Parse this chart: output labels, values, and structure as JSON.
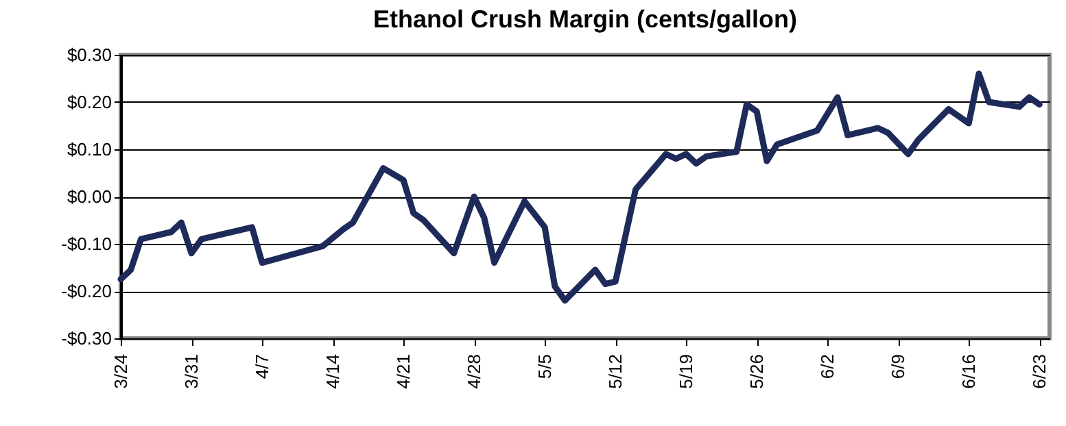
{
  "chart_data": {
    "type": "line",
    "title": "Ethanol Crush Margin (cents/gallon)",
    "x": [
      "--03-24",
      "--03-25",
      "--03-26",
      "--03-29",
      "--03-30",
      "--03-31",
      "--04-01",
      "--04-06",
      "--04-07",
      "--04-13",
      "--04-15",
      "--04-16",
      "--04-19",
      "--04-21",
      "--04-22",
      "--04-23",
      "--04-26",
      "--04-28",
      "--04-29",
      "--04-30",
      "--05-03",
      "--05-05",
      "--05-06",
      "--05-07",
      "--05-10",
      "--05-11",
      "--05-12",
      "--05-14",
      "--05-17",
      "--05-18",
      "--05-19",
      "--05-20",
      "--05-21",
      "--05-24",
      "--05-25",
      "--05-26",
      "--05-27",
      "--05-28",
      "--06-01",
      "--06-03",
      "--06-04",
      "--06-07",
      "--06-08",
      "--06-10",
      "--06-11",
      "--06-14",
      "--06-16",
      "--06-17",
      "--06-18",
      "--06-21",
      "--06-22",
      "--06-23"
    ],
    "series": [
      {
        "color": "#1e2a5a",
        "values": [
          -0.175,
          -0.155,
          -0.09,
          -0.075,
          -0.055,
          -0.12,
          -0.09,
          -0.065,
          -0.14,
          -0.105,
          -0.07,
          -0.055,
          0.06,
          0.035,
          -0.035,
          -0.05,
          -0.12,
          0.0,
          -0.045,
          -0.14,
          -0.01,
          -0.065,
          -0.19,
          -0.22,
          -0.155,
          -0.185,
          -0.18,
          0.015,
          0.09,
          0.08,
          0.09,
          0.07,
          0.085,
          0.095,
          0.195,
          0.18,
          0.075,
          0.11,
          0.14,
          0.21,
          0.13,
          0.145,
          0.135,
          0.09,
          0.12,
          0.185,
          0.155,
          0.26,
          0.2,
          0.19,
          0.21,
          0.195
        ]
      }
    ],
    "xlim": [
      "--03-24",
      "--06-24"
    ],
    "xticks": [
      {
        "value": "--03-24",
        "label": "3/24"
      },
      {
        "value": "--03-31",
        "label": "3/31"
      },
      {
        "value": "--04-07",
        "label": "4/7"
      },
      {
        "value": "--04-14",
        "label": "4/14"
      },
      {
        "value": "--04-21",
        "label": "4/21"
      },
      {
        "value": "--04-28",
        "label": "4/28"
      },
      {
        "value": "--05-05",
        "label": "5/5"
      },
      {
        "value": "--05-12",
        "label": "5/12"
      },
      {
        "value": "--05-19",
        "label": "5/19"
      },
      {
        "value": "--05-26",
        "label": "5/26"
      },
      {
        "value": "--06-02",
        "label": "6/2"
      },
      {
        "value": "--06-09",
        "label": "6/9"
      },
      {
        "value": "--06-16",
        "label": "6/16"
      },
      {
        "value": "--06-23",
        "label": "6/23"
      }
    ],
    "ylim": [
      -0.3,
      0.3
    ],
    "yticks": [
      {
        "value": -0.3,
        "label": "-$0.30"
      },
      {
        "value": -0.2,
        "label": "-$0.20"
      },
      {
        "value": -0.1,
        "label": "-$0.10"
      },
      {
        "value": 0,
        "label": "$0.00"
      },
      {
        "value": 0.1,
        "label": "$0.10"
      },
      {
        "value": 0.2,
        "label": "$0.20"
      },
      {
        "value": 0.3,
        "label": "$0.30"
      }
    ],
    "grid": "y",
    "line_style": "solid",
    "marker": "none"
  }
}
